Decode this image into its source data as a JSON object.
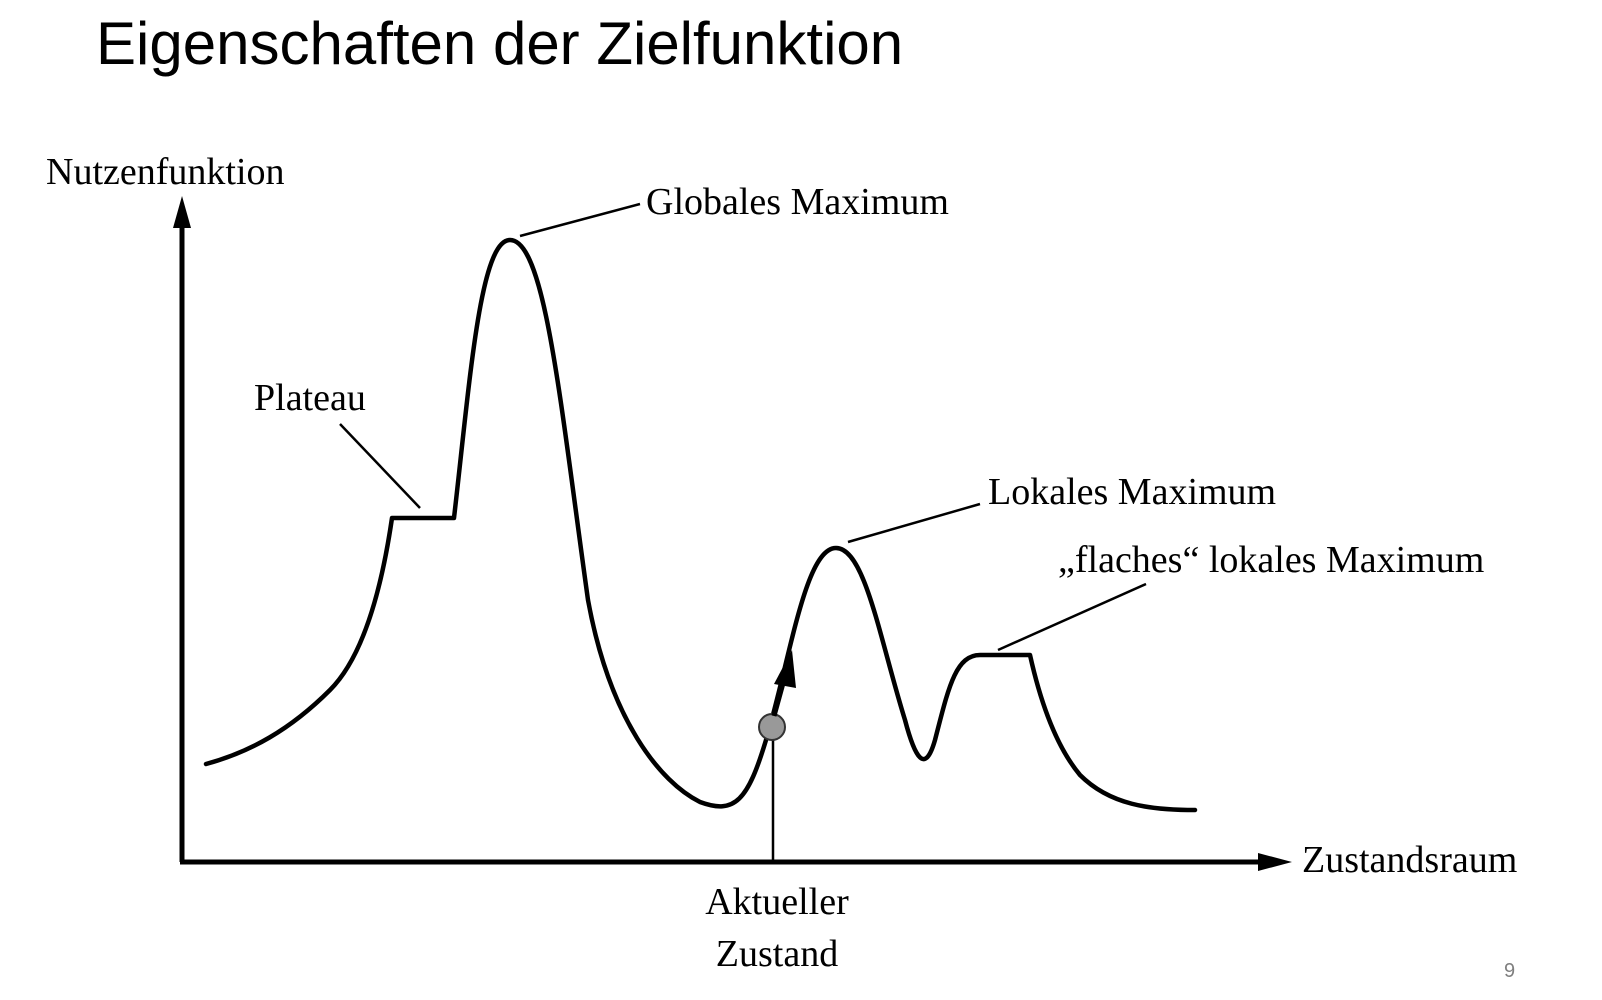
{
  "slide": {
    "title": "Eigenschaften der Zielfunktion",
    "page_number": "9"
  },
  "diagram": {
    "y_axis_label": "Nutzenfunktion",
    "x_axis_label": "Zustandsraum",
    "labels": {
      "global_max": "Globales Maximum",
      "plateau": "Plateau",
      "local_max": "Lokales Maximum",
      "flat_local_max": "„flaches“ lokales Maximum",
      "current_state_line1": "Aktueller",
      "current_state_line2": "Zustand"
    },
    "colors": {
      "curve": "#000000",
      "current_state_marker": "#999999"
    }
  }
}
